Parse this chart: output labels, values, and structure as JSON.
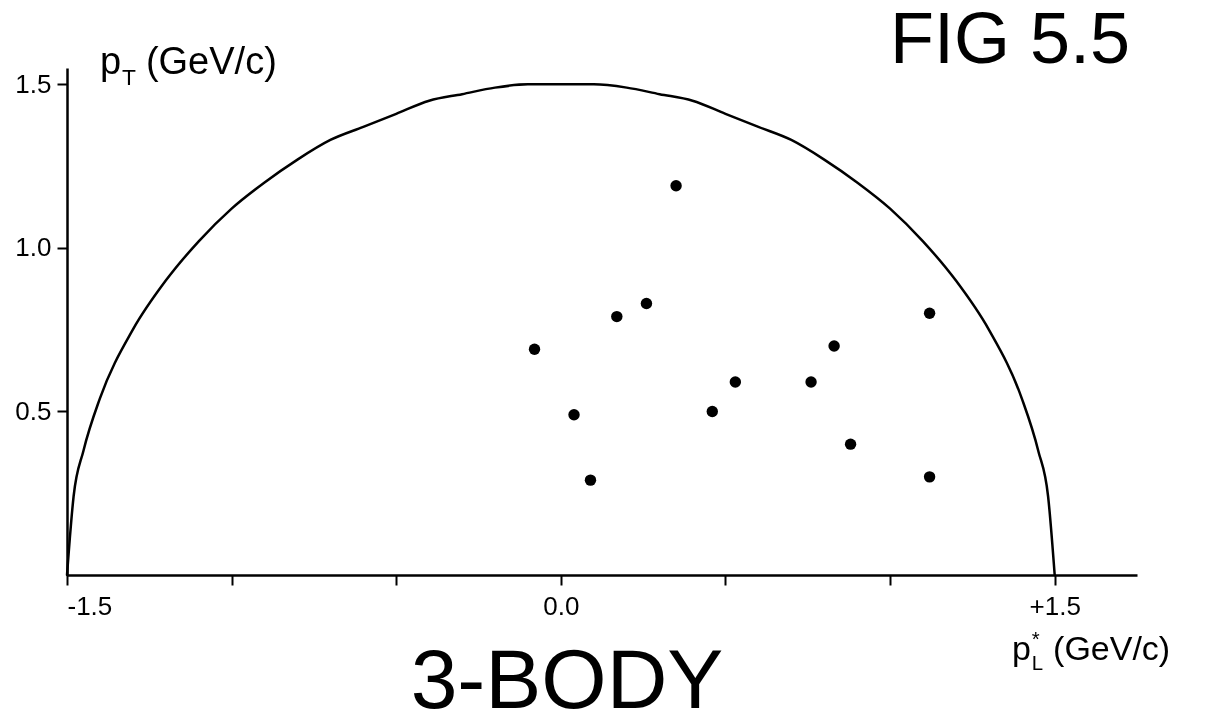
{
  "chart_data": {
    "type": "scatter",
    "title": "3-BODY",
    "xlabel": "p$^{*}$$_{L}$ (GeV/c)",
    "ylabel": "p$_{T}$ (GeV/c)",
    "annotations": [
      "FIG 5.5"
    ],
    "xlim": [
      -1.5,
      1.75
    ],
    "ylim": [
      0,
      1.55
    ],
    "xticks": [
      -1.5,
      {
        "value": -1.0,
        "label": null
      },
      {
        "value": -0.5,
        "label": null
      },
      {
        "value": 0.0,
        "label": "0.0"
      },
      {
        "value": 0.5,
        "label": null
      },
      {
        "value": 1.0,
        "label": null
      },
      {
        "value": 1.5,
        "label": "+1.5"
      }
    ],
    "yticks": [
      0.5,
      {
        "value": 1.0,
        "label": "1.0"
      },
      1.5
    ],
    "series": [
      {
        "type": "line",
        "color": "#000000",
        "x": [
          -1.5,
          -1.48,
          -1.45,
          -1.4,
          -1.3,
          -1.2,
          -1.1,
          -1.0,
          -0.9,
          -0.8,
          -0.7,
          -0.6,
          -0.5,
          -0.4,
          -0.3,
          -0.2,
          -0.1,
          0.0,
          0.1,
          0.2,
          0.3,
          0.4,
          0.5,
          0.6,
          0.7,
          0.8,
          0.9,
          1.0,
          1.1,
          1.2,
          1.3,
          1.4,
          1.45,
          1.48,
          1.5
        ],
        "values": [
          0,
          0.24,
          0.38,
          0.54,
          0.75,
          0.9,
          1.02,
          1.12,
          1.2,
          1.27,
          1.33,
          1.37,
          1.41,
          1.45,
          1.47,
          1.49,
          1.5,
          1.5,
          1.5,
          1.49,
          1.47,
          1.45,
          1.41,
          1.37,
          1.33,
          1.27,
          1.2,
          1.12,
          1.02,
          0.9,
          0.75,
          0.54,
          0.38,
          0.24,
          0
        ]
      },
      {
        "color": "#000000",
        "marker": "circle",
        "x": [
          -0.08,
          0.04,
          0.09,
          0.17,
          0.26,
          0.35,
          0.46,
          0.53,
          0.76,
          0.83,
          0.88,
          1.12,
          1.12
        ],
        "values": [
          0.69,
          0.49,
          0.29,
          0.79,
          0.83,
          1.19,
          0.5,
          0.59,
          0.59,
          0.7,
          0.4,
          0.8,
          0.3
        ]
      }
    ]
  }
}
